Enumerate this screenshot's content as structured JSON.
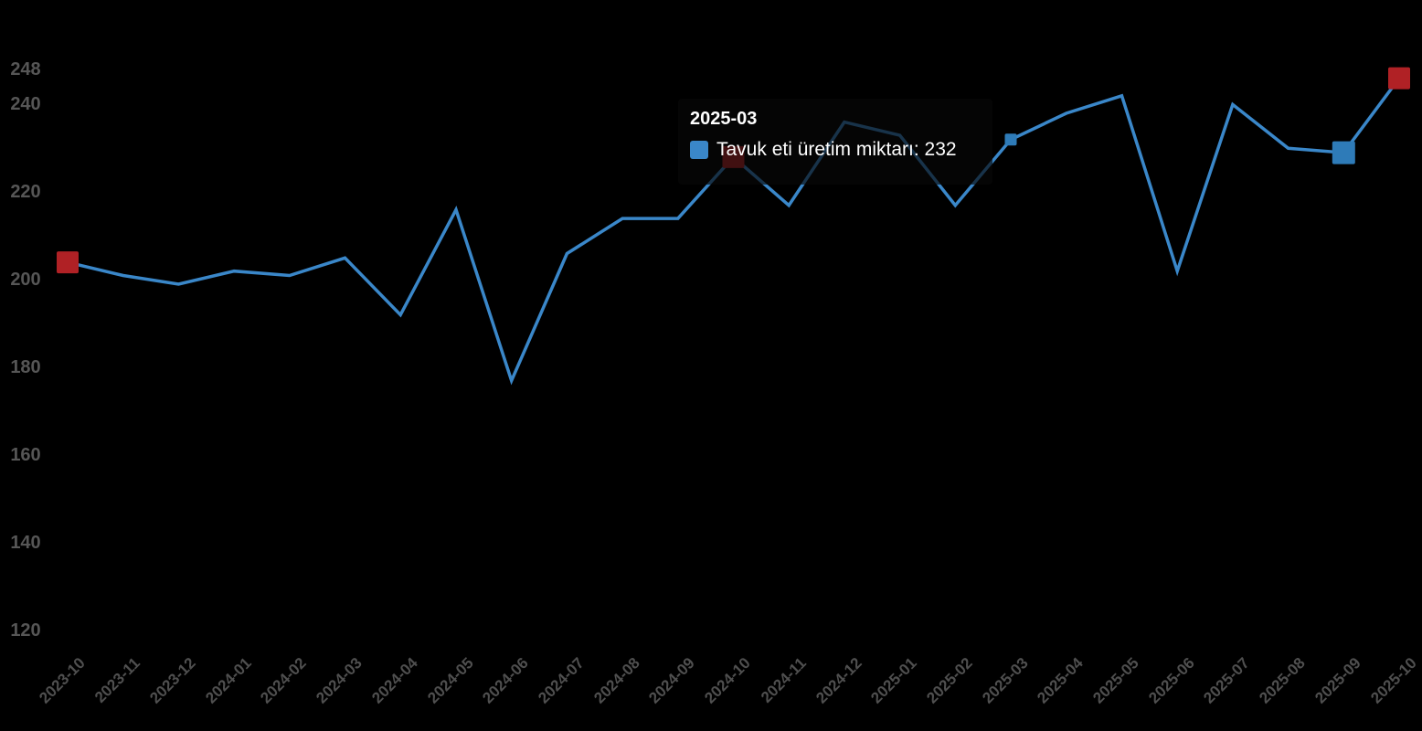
{
  "chart_data": {
    "type": "line",
    "title": "",
    "categories": [
      "2023-10",
      "2023-11",
      "2023-12",
      "2024-01",
      "2024-02",
      "2024-03",
      "2024-04",
      "2024-05",
      "2024-06",
      "2024-07",
      "2024-08",
      "2024-09",
      "2024-10",
      "2024-11",
      "2024-12",
      "2025-01",
      "2025-02",
      "2025-03",
      "2025-04",
      "2025-05",
      "2025-06",
      "2025-07",
      "2025-08",
      "2025-09",
      "2025-10"
    ],
    "series": [
      {
        "name": "Tavuk eti üretim miktarı",
        "values": [
          204,
          201,
          199,
          202,
          201,
          205,
          192,
          216,
          177,
          206,
          214,
          214,
          228,
          217,
          236,
          233,
          217,
          232,
          238,
          242,
          202,
          240,
          230,
          229,
          246
        ]
      }
    ],
    "xlabel": "",
    "ylabel": "",
    "ylim": [
      120,
      248
    ],
    "yticks": [
      120,
      140,
      160,
      180,
      200,
      220,
      240,
      248
    ],
    "grid": false,
    "legend_position": "none",
    "xlabel_rotation": -45,
    "markers": [
      {
        "category": "2023-10",
        "value": 204,
        "color": "red",
        "size": 24
      },
      {
        "category": "2024-10",
        "value": 228,
        "color": "red",
        "size": 24
      },
      {
        "category": "2025-03",
        "value": 232,
        "color": "blue",
        "size": 13
      },
      {
        "category": "2025-09",
        "value": 229,
        "color": "blue",
        "size": 25
      },
      {
        "category": "2025-10",
        "value": 246,
        "color": "red",
        "size": 24
      }
    ],
    "colors": {
      "line": "#3a87c9",
      "marker_blue": "#2e7bb8",
      "marker_red": "#b02125",
      "axis_label": "#565656",
      "background": "#000000",
      "tooltip_text": "#ffffff"
    }
  },
  "tooltip": {
    "title": "2025-03",
    "series_label": "Tavuk eti üretim miktarı",
    "value": "232",
    "text": "Tavuk eti üretim miktarı: 232"
  }
}
